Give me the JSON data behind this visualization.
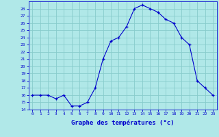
{
  "hours": [
    0,
    1,
    2,
    3,
    4,
    5,
    6,
    7,
    8,
    9,
    10,
    11,
    12,
    13,
    14,
    15,
    16,
    17,
    18,
    19,
    20,
    21,
    22,
    23
  ],
  "temperatures": [
    16,
    16,
    16,
    15.5,
    16,
    14.5,
    14.5,
    15,
    17,
    21,
    23.5,
    24,
    25.5,
    28,
    28.5,
    28,
    27.5,
    26.5,
    26,
    24,
    23,
    18,
    17,
    16
  ],
  "line_color": "#0000cc",
  "marker": "+",
  "bg_color": "#b0e8e8",
  "grid_color": "#88cccc",
  "xlabel": "Graphe des températures (°c)",
  "ylim": [
    14,
    29
  ],
  "ytick_min": 14,
  "ytick_max": 28,
  "axis_color": "#0000cc",
  "xlabel_color": "#0000cc"
}
